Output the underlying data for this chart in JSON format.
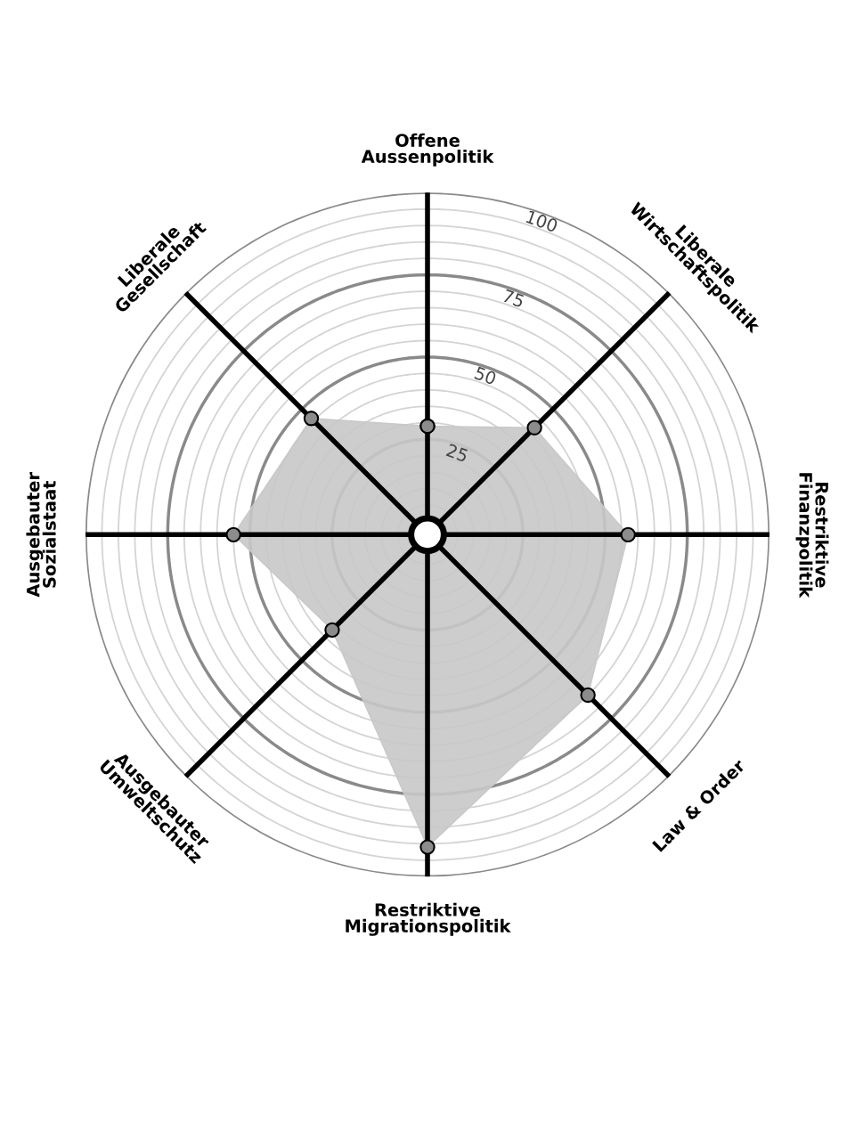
{
  "chart_data": {
    "type": "radar",
    "categories": [
      "Offene\nAussenpolitik",
      "Liberale\nWirtschaftspolitik",
      "Restriktive\nFinanzpolitik",
      "Law & Order",
      "Restriktive\nMigrationspolitik",
      "Ausgebauter\nUmweltschutz",
      "Ausgebauter\nSozialstaat",
      "Liberale\nGesellschaft"
    ],
    "series": [
      {
        "color": "#c8c8c8",
        "values": [
          29,
          42,
          57,
          65,
          91,
          37,
          55,
          46
        ]
      }
    ],
    "ylim": [
      -4,
      100
    ],
    "yticks": [
      25,
      50,
      75,
      100
    ],
    "grid": true,
    "marker": "circle",
    "legend": false
  }
}
